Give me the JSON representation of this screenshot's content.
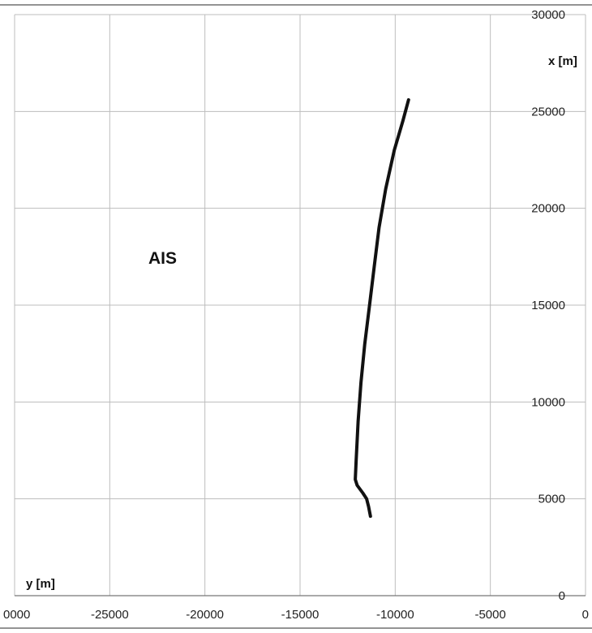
{
  "chart_data": {
    "type": "line",
    "title": "",
    "annotation": "AIS",
    "xlabel": "y [m]",
    "ylabel": "x [m]",
    "xlim": [
      -30000,
      0
    ],
    "ylim": [
      0,
      30000
    ],
    "x_ticks": [
      "0000",
      "-25000",
      "-20000",
      "-15000",
      "-10000",
      "-5000",
      "0"
    ],
    "y_ticks": [
      "0",
      "5000",
      "10000",
      "15000",
      "20000",
      "25000",
      "30000"
    ],
    "grid": true,
    "line_color": "#111111",
    "series": [
      {
        "points": [
          [
            -11300,
            4100
          ],
          [
            -11400,
            4600
          ],
          [
            -11500,
            5000
          ],
          [
            -11700,
            5300
          ],
          [
            -12000,
            5700
          ],
          [
            -12100,
            6000
          ],
          [
            -12050,
            7000
          ],
          [
            -11950,
            9000
          ],
          [
            -11800,
            11000
          ],
          [
            -11600,
            13000
          ],
          [
            -11350,
            15000
          ],
          [
            -11100,
            17000
          ],
          [
            -10850,
            19000
          ],
          [
            -10500,
            21000
          ],
          [
            -10050,
            23000
          ],
          [
            -9600,
            24500
          ],
          [
            -9300,
            25600
          ]
        ]
      }
    ]
  }
}
